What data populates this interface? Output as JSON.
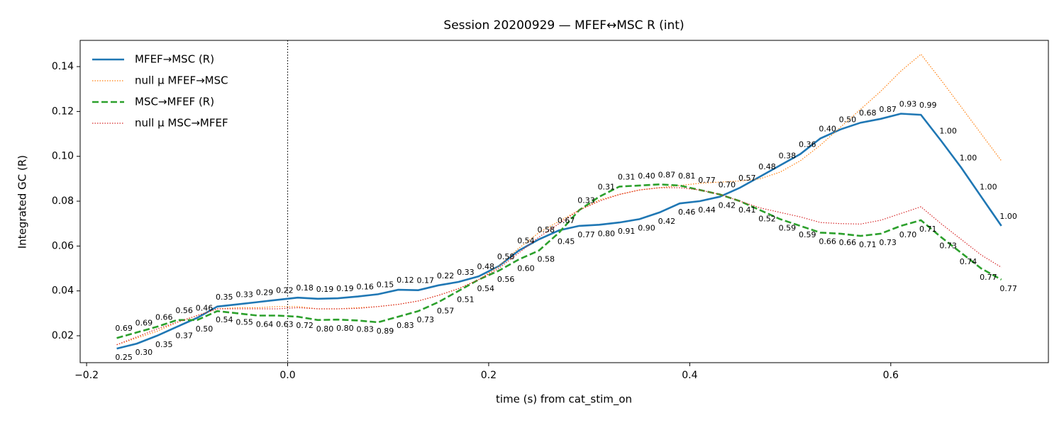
{
  "chart_data": {
    "type": "line",
    "title": "Session 20200929 — MFEF↔MSC R (int)",
    "x_label": "time (s) from cat_stim_on",
    "y_label": "Integrated GC (R)",
    "x": [
      -0.17,
      -0.15,
      -0.13,
      -0.11,
      -0.09,
      -0.07,
      -0.05,
      -0.03,
      -0.01,
      0.01,
      0.03,
      0.05,
      0.07,
      0.09,
      0.11,
      0.13,
      0.15,
      0.17,
      0.19,
      0.21,
      0.23,
      0.25,
      0.27,
      0.29,
      0.31,
      0.33,
      0.35,
      0.37,
      0.39,
      0.41,
      0.43,
      0.45,
      0.47,
      0.49,
      0.51,
      0.53,
      0.55,
      0.57,
      0.59,
      0.61,
      0.63,
      0.65,
      0.67,
      0.69,
      0.71
    ],
    "series": [
      {
        "name": "MFEF→MSC (R)",
        "color": "#1f77b4",
        "style": "solid",
        "values": [
          0.0143,
          0.0165,
          0.02,
          0.024,
          0.028,
          0.033,
          0.034,
          0.035,
          0.036,
          0.037,
          0.0365,
          0.0367,
          0.0375,
          0.0385,
          0.0405,
          0.0403,
          0.0425,
          0.044,
          0.0465,
          0.051,
          0.058,
          0.063,
          0.067,
          0.069,
          0.0695,
          0.0705,
          0.072,
          0.075,
          0.079,
          0.08,
          0.082,
          0.086,
          0.091,
          0.096,
          0.101,
          0.108,
          0.112,
          0.115,
          0.1167,
          0.119,
          0.1185,
          0.107,
          0.095,
          0.082,
          0.069
        ],
        "point_labels": [
          "0.25",
          "0.30",
          "0.35",
          "0.37",
          "0.46",
          "0.35",
          "0.33",
          "0.29",
          "0.22",
          "0.18",
          "0.19",
          "0.19",
          "0.16",
          "0.15",
          "0.12",
          "0.17",
          "0.22",
          "0.33",
          "0.48",
          "0.58",
          "0.54",
          "0.58",
          "0.67",
          "0.77",
          "0.80",
          "0.91",
          "0.90",
          "0.42",
          "0.46",
          "0.44",
          "0.42",
          "0.57",
          "0.48",
          "0.38",
          "0.36",
          "0.40",
          "0.50",
          "0.68",
          "0.87",
          "0.93",
          "0.99",
          "1.00",
          "1.00",
          "1.00",
          "1.00"
        ]
      },
      {
        "name": "null μ MFEF→MSC",
        "color": "#ff7f0e",
        "style": "dotted",
        "values": [
          0.016,
          0.019,
          0.022,
          0.026,
          0.029,
          0.032,
          0.0325,
          0.0325,
          0.033,
          0.033,
          0.032,
          0.032,
          0.0325,
          0.033,
          0.034,
          0.0355,
          0.038,
          0.041,
          0.045,
          0.051,
          0.059,
          0.066,
          0.071,
          0.076,
          0.0805,
          0.083,
          0.085,
          0.086,
          0.087,
          0.088,
          0.0885,
          0.089,
          0.09,
          0.093,
          0.098,
          0.105,
          0.113,
          0.121,
          0.129,
          0.138,
          0.1455,
          0.134,
          0.122,
          0.11,
          0.098
        ]
      },
      {
        "name": "MSC→MFEF (R)",
        "color": "#2ca02c",
        "style": "dashed",
        "values": [
          0.019,
          0.0215,
          0.024,
          0.027,
          0.027,
          0.031,
          0.03,
          0.029,
          0.029,
          0.0285,
          0.027,
          0.0272,
          0.0268,
          0.026,
          0.0285,
          0.031,
          0.035,
          0.04,
          0.045,
          0.049,
          0.054,
          0.058,
          0.066,
          0.076,
          0.082,
          0.0865,
          0.087,
          0.0875,
          0.087,
          0.085,
          0.083,
          0.08,
          0.076,
          0.072,
          0.069,
          0.066,
          0.0655,
          0.0645,
          0.0655,
          0.069,
          0.0715,
          0.064,
          0.057,
          0.05,
          0.045
        ],
        "point_labels": [
          "0.69",
          "0.69",
          "0.66",
          "0.56",
          "0.50",
          "0.54",
          "0.55",
          "0.64",
          "0.63",
          "0.72",
          "0.80",
          "0.80",
          "0.83",
          "0.89",
          "0.83",
          "0.73",
          "0.57",
          "0.51",
          "0.54",
          "0.56",
          "0.60",
          "0.58",
          "0.45",
          "0.33",
          "0.31",
          "0.31",
          "0.40",
          "0.87",
          "0.81",
          "0.77",
          "0.70",
          "0.41",
          "0.52",
          "0.59",
          "0.59",
          "0.66",
          "0.66",
          "0.71",
          "0.73",
          "0.70",
          "0.71",
          "0.73",
          "0.74",
          "0.77",
          "0.77"
        ]
      },
      {
        "name": "null μ MSC→MFEF",
        "color": "#d62728",
        "style": "dotted",
        "values": [
          0.016,
          0.0195,
          0.023,
          0.026,
          0.029,
          0.032,
          0.032,
          0.032,
          0.032,
          0.0325,
          0.032,
          0.032,
          0.0322,
          0.033,
          0.034,
          0.0355,
          0.038,
          0.041,
          0.045,
          0.05,
          0.057,
          0.064,
          0.07,
          0.076,
          0.08,
          0.083,
          0.085,
          0.086,
          0.086,
          0.085,
          0.083,
          0.08,
          0.077,
          0.075,
          0.073,
          0.0705,
          0.07,
          0.0698,
          0.0715,
          0.0745,
          0.0775,
          0.07,
          0.063,
          0.056,
          0.0505
        ]
      }
    ],
    "xlim": [
      -0.2064,
      0.7568
    ],
    "ylim": [
      0.008,
      0.1517
    ],
    "xticks": [
      {
        "value": -0.2,
        "label": "−0.2"
      },
      {
        "value": 0,
        "label": "0.0"
      },
      0.2,
      0.4,
      0.6
    ],
    "yticks": [
      0.02,
      0.04,
      0.06,
      0.08,
      {
        "value": 0.1,
        "label": "0.10"
      },
      0.12,
      0.14
    ],
    "vline": 0,
    "legend": "upper left",
    "grid": false
  }
}
